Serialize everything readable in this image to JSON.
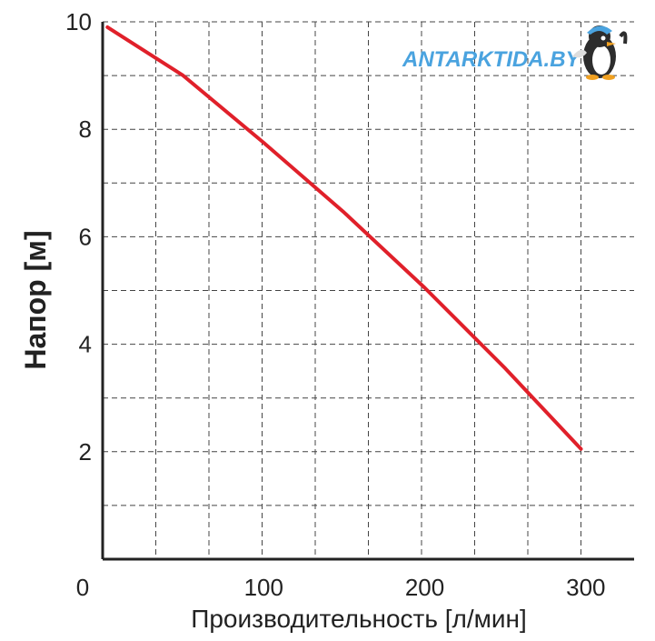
{
  "chart_data": {
    "type": "line",
    "xlabel": "Производительность [л/мин]",
    "ylabel": "Напор [м]",
    "xlim": [
      0,
      330
    ],
    "ylim": [
      0,
      10
    ],
    "x_ticks": [
      "0",
      "100",
      "200",
      "300"
    ],
    "y_ticks": [
      "2",
      "4",
      "6",
      "8",
      "10"
    ],
    "grid": true,
    "series": [
      {
        "color": "#e0202a",
        "x": [
          3,
          50,
          100,
          150,
          200,
          250,
          297
        ],
        "y": [
          9.9,
          9.0,
          7.75,
          6.45,
          5.05,
          3.55,
          2.05
        ]
      }
    ]
  },
  "watermark": {
    "text": "ANTARKTIDA.BY",
    "color": "#4aa3df",
    "icon": "penguin-icon"
  }
}
